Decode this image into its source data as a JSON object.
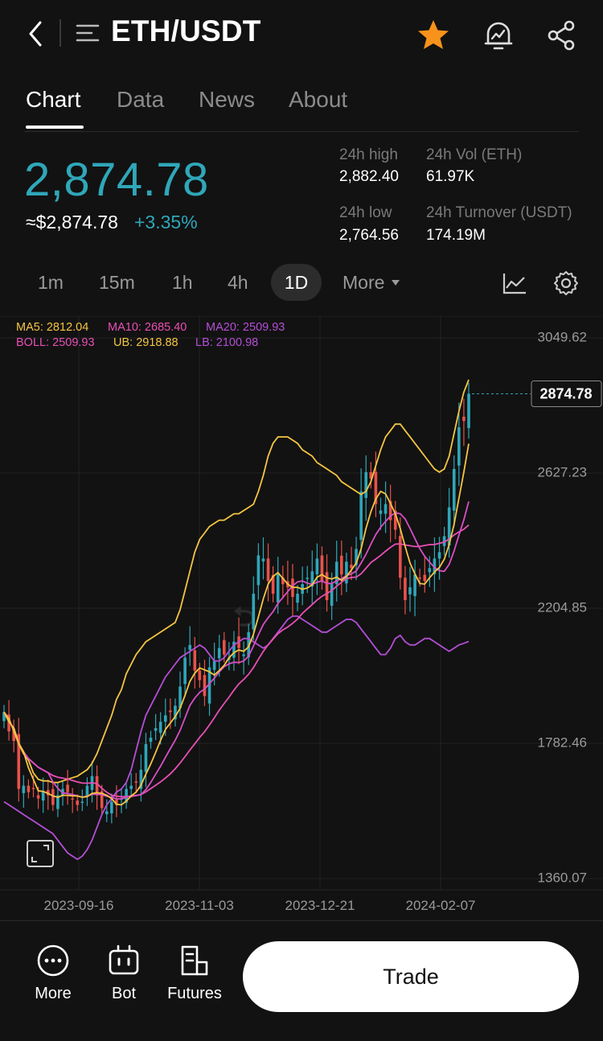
{
  "header": {
    "title": "ETH/USDT",
    "icons": [
      "chevron-left-icon",
      "menu-icon",
      "star-icon",
      "price-alert-icon",
      "share-icon"
    ],
    "star_color": "#f7931a"
  },
  "tabs": [
    {
      "label": "Chart",
      "active": true
    },
    {
      "label": "Data",
      "active": false
    },
    {
      "label": "News",
      "active": false
    },
    {
      "label": "About",
      "active": false
    }
  ],
  "price": {
    "last": "2,874.78",
    "usd": "≈$2,874.78",
    "change": "+3.35%",
    "color": "#2fa7b9"
  },
  "stats": {
    "high_label": "24h high",
    "high_value": "2,882.40",
    "vol_label": "24h Vol (ETH)",
    "vol_value": "61.97K",
    "low_label": "24h low",
    "low_value": "2,764.56",
    "turnover_label": "24h Turnover (USDT)",
    "turnover_value": "174.19M"
  },
  "timeframes": {
    "m1": "1m",
    "m15": "15m",
    "h1": "1h",
    "h4": "4h",
    "d1": "1D",
    "more": "More",
    "selected": "1D"
  },
  "indicators": {
    "ma5": "MA5: 2812.04",
    "ma10": "MA10: 2685.40",
    "ma20": "MA20: 2509.93",
    "boll": "BOLL: 2509.93",
    "ub": "UB: 2918.88",
    "lb": "LB: 2100.98",
    "colors": {
      "ma5": "#f5c542",
      "ma10": "#e94fb5",
      "ma20": "#b44fd6",
      "boll": "#f5c542",
      "ub": "#f5c542",
      "lb": "#b44fd6"
    }
  },
  "chart_data": {
    "type": "candlestick",
    "y_ticks": [
      "3049.62",
      "2627.23",
      "2204.85",
      "1782.46",
      "1360.07"
    ],
    "ylim": [
      1360.07,
      3049.62
    ],
    "x_ticks": [
      "2023-09-16",
      "2023-11-03",
      "2023-12-21",
      "2024-02-07"
    ],
    "last_price_label": "2874.78",
    "up_color": "#2fa7b9",
    "down_color": "#e8524b",
    "close_series": [
      1880,
      1820,
      1790,
      1640,
      1650,
      1630,
      1640,
      1610,
      1630,
      1620,
      1590,
      1620,
      1640,
      1630,
      1610,
      1590,
      1600,
      1650,
      1680,
      1620,
      1580,
      1570,
      1600,
      1590,
      1610,
      1640,
      1650,
      1660,
      1700,
      1780,
      1800,
      1830,
      1850,
      1870,
      1880,
      1900,
      1960,
      2050,
      2090,
      2010,
      1980,
      1930,
      2020,
      2040,
      2080,
      2060,
      2050,
      2100,
      2080,
      2060,
      2130,
      2250,
      2370,
      2360,
      2290,
      2250,
      2310,
      2280,
      2270,
      2240,
      2250,
      2280,
      2300,
      2320,
      2360,
      2290,
      2230,
      2280,
      2350,
      2310,
      2350,
      2330,
      2390,
      2570,
      2630,
      2610,
      2530,
      2510,
      2530,
      2480,
      2450,
      2300,
      2230,
      2270,
      2310,
      2300,
      2290,
      2330,
      2360,
      2380,
      2430,
      2520,
      2640,
      2770,
      2790,
      2875
    ],
    "bollinger_upper": [
      1880,
      1860,
      1820,
      1780,
      1750,
      1730,
      1690,
      1670,
      1665,
      1665,
      1660,
      1660,
      1665,
      1670,
      1675,
      1680,
      1690,
      1700,
      1720,
      1750,
      1790,
      1830,
      1870,
      1920,
      1950,
      2000,
      2030,
      2060,
      2080,
      2100,
      2110,
      2120,
      2130,
      2140,
      2150,
      2160,
      2200,
      2260,
      2320,
      2380,
      2420,
      2440,
      2460,
      2470,
      2480,
      2480,
      2490,
      2500,
      2500,
      2510,
      2520,
      2530,
      2570,
      2620,
      2680,
      2720,
      2740,
      2740,
      2740,
      2730,
      2720,
      2700,
      2690,
      2680,
      2660,
      2650,
      2640,
      2630,
      2620,
      2600,
      2590,
      2580,
      2570,
      2560,
      2570,
      2600,
      2650,
      2700,
      2740,
      2760,
      2780,
      2780,
      2760,
      2740,
      2720,
      2700,
      2680,
      2660,
      2640,
      2630,
      2640,
      2680,
      2750,
      2820,
      2880,
      2918.88
    ],
    "bollinger_lower": [
      1600,
      1590,
      1580,
      1570,
      1560,
      1550,
      1540,
      1530,
      1520,
      1510,
      1500,
      1480,
      1460,
      1440,
      1430,
      1420,
      1430,
      1450,
      1480,
      1520,
      1560,
      1590,
      1610,
      1630,
      1640,
      1660,
      1700,
      1760,
      1820,
      1870,
      1900,
      1930,
      1960,
      1990,
      2010,
      2030,
      2050,
      2060,
      2070,
      2080,
      2090,
      2080,
      2060,
      2040,
      2040,
      2050,
      2070,
      2090,
      2100,
      2110,
      2110,
      2100,
      2090,
      2080,
      2090,
      2110,
      2130,
      2150,
      2170,
      2180,
      2180,
      2170,
      2160,
      2150,
      2140,
      2130,
      2130,
      2140,
      2150,
      2160,
      2170,
      2170,
      2160,
      2140,
      2120,
      2100,
      2080,
      2060,
      2060,
      2080,
      2110,
      2120,
      2100,
      2090,
      2090,
      2100,
      2110,
      2110,
      2100,
      2090,
      2080,
      2070,
      2080,
      2090,
      2095,
      2100.98
    ]
  },
  "bottom_nav": {
    "more": "More",
    "bot": "Bot",
    "futures": "Futures",
    "trade": "Trade"
  }
}
